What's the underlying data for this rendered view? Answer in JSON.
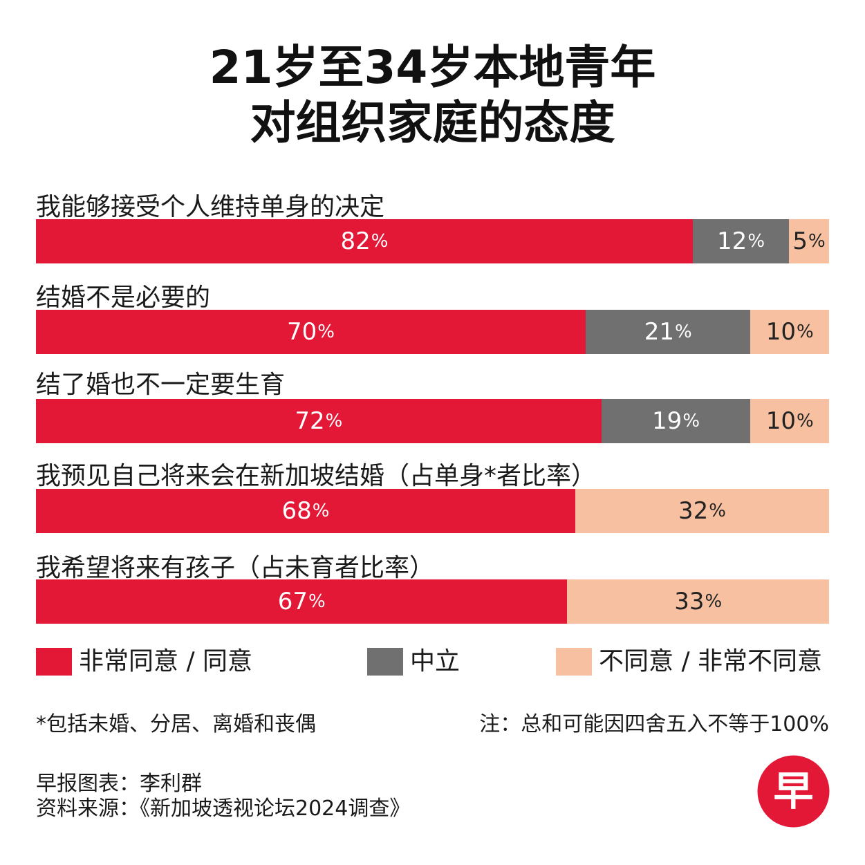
{
  "title_line1": "21岁至34岁本地青年",
  "title_line2": "对组织家庭的态度",
  "colors": {
    "agree": "#e31837",
    "neutral": "#707070",
    "disagree": "#f7c0a0",
    "agree_text": "#ffffff",
    "neutral_text": "#ffffff",
    "disagree_text": "#222222"
  },
  "chart_data": {
    "type": "bar",
    "orientation": "horizontal",
    "stacked": true,
    "unit": "%",
    "categories": [
      "我能够接受个人维持单身的决定",
      "结婚不是必要的",
      "结了婚也不一定要生育",
      "我预见自己将来会在新加坡结婚（占单身*者比率）",
      "我希望将来有孩子（占未育者比率）"
    ],
    "series": [
      {
        "name": "非常同意 / 同意",
        "values": [
          82,
          70,
          72,
          68,
          67
        ]
      },
      {
        "name": "中立",
        "values": [
          12,
          21,
          19,
          null,
          null
        ]
      },
      {
        "name": "不同意 / 非常不同意",
        "values": [
          5,
          10,
          10,
          32,
          33
        ]
      }
    ]
  },
  "footnote": "*包括未婚、分居、离婚和丧偶",
  "note": "注：总和可能因四舍五入不等于100%",
  "credit": "早报图表：李利群",
  "source": "资料来源：《新加坡透视论坛2024调查》",
  "logo_char": "早"
}
